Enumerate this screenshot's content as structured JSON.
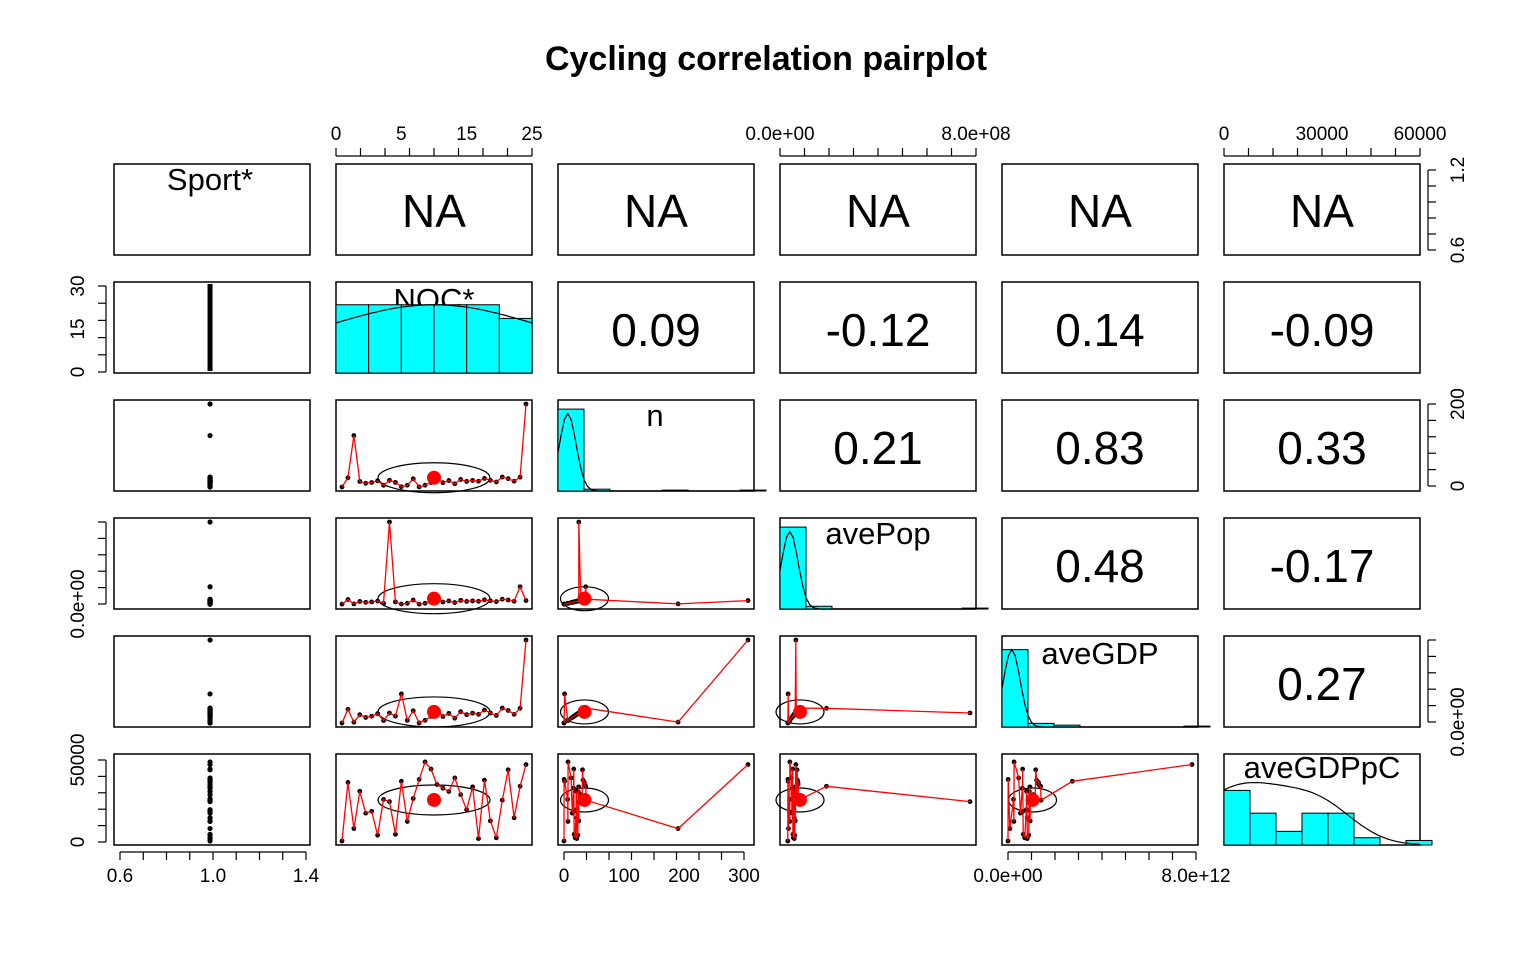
{
  "chart_data": {
    "type": "scatter",
    "title": "Cycling correlation pairplot",
    "variables": [
      "Sport*",
      "NOC*",
      "n",
      "avePop",
      "aveGDP",
      "aveGDPpC"
    ],
    "upper_panels": {
      "row0": [
        "NA",
        "NA",
        "NA",
        "NA",
        "NA"
      ],
      "row1": [
        "0.09",
        "-0.12",
        "0.14",
        "-0.09"
      ],
      "row2": [
        "0.21",
        "0.83",
        "0.33"
      ],
      "row3": [
        "0.48",
        "-0.17"
      ],
      "row4": [
        "0.27"
      ]
    },
    "axis_ticks": {
      "top_noc": [
        "0",
        "5",
        "15",
        "25"
      ],
      "top_avepop": [
        "0.0e+00",
        "8.0e+08"
      ],
      "top_avegdppc": [
        "0",
        "30000",
        "60000"
      ],
      "right_sport": [
        "0.6",
        "1.2"
      ],
      "right_n": [
        "0",
        "200"
      ],
      "right_avegdp": [
        "0.0e+00"
      ],
      "left_noc": [
        "0",
        "15",
        "30"
      ],
      "left_avepop": [
        "0.0e+00"
      ],
      "left_avegdppc": [
        "0",
        "50000"
      ],
      "bottom_sport": [
        "0.6",
        "1.0",
        "1.4"
      ],
      "bottom_n": [
        "0",
        "100",
        "200",
        "300"
      ],
      "bottom_avegdp": [
        "0.0e+00",
        "8.0e+12"
      ]
    },
    "histograms": {
      "NOC*": [
        0.75,
        0.75,
        0.75,
        0.75,
        0.75,
        0.6
      ],
      "n": [
        0.9,
        0.02,
        0.0,
        0.0,
        0.01,
        0.0,
        0.0,
        0.01
      ],
      "avePop": [
        0.9,
        0.03,
        0.0,
        0.0,
        0.0,
        0.0,
        0.0,
        0.01
      ],
      "aveGDP": [
        0.85,
        0.04,
        0.02,
        0.0,
        0.0,
        0.0,
        0.0,
        0.01
      ],
      "aveGDPpC": [
        0.6,
        0.35,
        0.15,
        0.35,
        0.35,
        0.08,
        0.0,
        0.05
      ]
    },
    "histogram_color": "#00FFFF",
    "mean_point_color": "#FF0000",
    "smooth_line_color": "#FF0000",
    "grid": false,
    "legend": "none"
  }
}
